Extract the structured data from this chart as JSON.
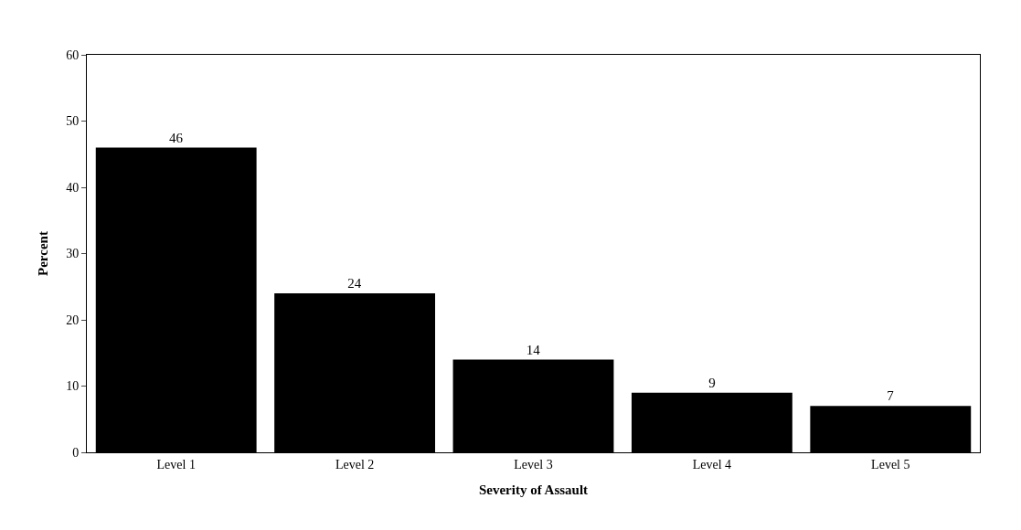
{
  "chart_data": {
    "type": "bar",
    "xlabel": "Severity of Assault",
    "ylabel": "Percent",
    "categories": [
      "Level 1",
      "Level 2",
      "Level 3",
      "Level 4",
      "Level 5"
    ],
    "values": [
      46,
      24,
      14,
      9,
      7
    ],
    "color": "#000000",
    "ylim": [
      0,
      60
    ],
    "yticks": [
      0,
      10,
      20,
      30,
      40,
      50,
      60
    ],
    "grid": false,
    "data_labels": true
  }
}
